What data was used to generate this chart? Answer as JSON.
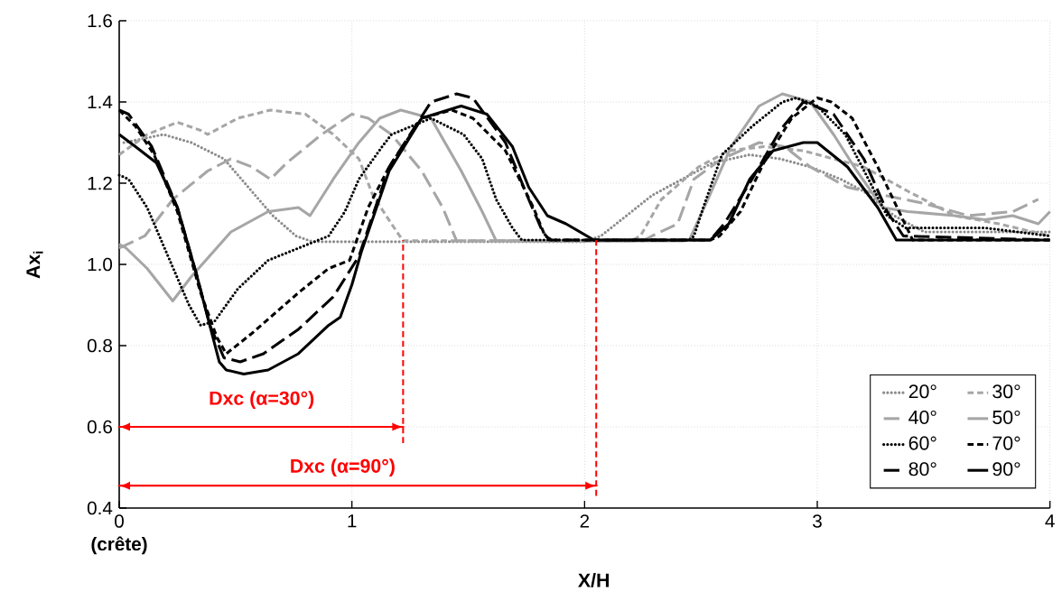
{
  "chart_data": {
    "type": "line",
    "xlabel": "X/H",
    "ylabel": "Ax$_{i}$",
    "xlim": [
      0,
      4
    ],
    "ylim": [
      0.4,
      1.6
    ],
    "xticks": [
      {
        "value": 0,
        "label": "0 **(crête)**"
      },
      1,
      2,
      3,
      4
    ],
    "yticks": [
      0.4,
      0.6,
      0.8,
      {
        "value": 1,
        "label": "1.0"
      },
      1.2,
      1.4,
      1.6
    ],
    "grid": true,
    "legend": "bottom right",
    "marker": "none",
    "series": [
      {
        "name": "20°",
        "color": "#8c8c8c",
        "line_style": "dotted",
        "x": [
          0.02,
          0.19,
          0.31,
          0.45,
          0.57,
          0.66,
          0.76,
          0.83,
          2.0,
          2.07,
          2.18,
          2.29,
          2.42,
          2.55,
          2.71,
          2.84,
          2.97,
          3.1,
          3.2,
          3.33,
          3.46,
          3.72,
          4.0
        ],
        "values": [
          1.3,
          1.32,
          1.3,
          1.26,
          1.18,
          1.12,
          1.07,
          1.056,
          1.056,
          1.07,
          1.12,
          1.17,
          1.21,
          1.25,
          1.27,
          1.26,
          1.24,
          1.21,
          1.18,
          1.12,
          1.08,
          1.08,
          1.08
        ]
      },
      {
        "name": "30°",
        "color": "#a6a6a6",
        "line_style": "dashed",
        "x": [
          0,
          0.12,
          0.25,
          0.35,
          0.38,
          0.51,
          0.65,
          0.8,
          0.92,
          1.03,
          1.09,
          1.17,
          1.22,
          2.2,
          2.24,
          2.33,
          2.49,
          2.62,
          2.77,
          2.94,
          3.07,
          3.2,
          3.39,
          3.59,
          3.78,
          4.0
        ],
        "values": [
          1.27,
          1.32,
          1.35,
          1.33,
          1.32,
          1.36,
          1.38,
          1.37,
          1.32,
          1.26,
          1.17,
          1.1,
          1.058,
          1.058,
          1.07,
          1.16,
          1.24,
          1.28,
          1.29,
          1.28,
          1.26,
          1.24,
          1.18,
          1.12,
          1.1,
          1.07
        ]
      },
      {
        "name": "40°",
        "color": "#a6a6a6",
        "line_style": "long dashed",
        "x": [
          0,
          0.11,
          0.23,
          0.38,
          0.48,
          0.57,
          0.65,
          0.72,
          0.87,
          1.0,
          1.07,
          1.17,
          1.3,
          1.39,
          1.45,
          2.25,
          2.29,
          2.4,
          2.47,
          2.59,
          2.75,
          2.86,
          2.97,
          3.13,
          3.29,
          3.46,
          3.65,
          3.84,
          3.95
        ],
        "values": [
          1.04,
          1.07,
          1.16,
          1.23,
          1.26,
          1.24,
          1.21,
          1.25,
          1.32,
          1.37,
          1.36,
          1.32,
          1.23,
          1.14,
          1.058,
          1.058,
          1.07,
          1.1,
          1.21,
          1.26,
          1.3,
          1.29,
          1.24,
          1.19,
          1.17,
          1.15,
          1.12,
          1.13,
          1.16
        ]
      },
      {
        "name": "50°",
        "color": "#a6a6a6",
        "line_style": "solid",
        "x": [
          0,
          0.03,
          0.12,
          0.23,
          0.31,
          0.48,
          0.64,
          0.77,
          0.82,
          0.92,
          1.03,
          1.12,
          1.21,
          1.34,
          1.47,
          1.56,
          1.62,
          2.42,
          2.45,
          2.53,
          2.63,
          2.75,
          2.85,
          2.97,
          3.07,
          3.17,
          3.28,
          3.39,
          3.59,
          3.72,
          3.84,
          3.95,
          4.0
        ],
        "values": [
          1.05,
          1.04,
          0.99,
          0.91,
          0.97,
          1.08,
          1.13,
          1.14,
          1.12,
          1.21,
          1.3,
          1.36,
          1.38,
          1.36,
          1.23,
          1.13,
          1.058,
          1.058,
          1.06,
          1.16,
          1.29,
          1.39,
          1.42,
          1.4,
          1.32,
          1.23,
          1.14,
          1.13,
          1.12,
          1.11,
          1.12,
          1.1,
          1.13
        ]
      },
      {
        "name": "60°",
        "color": "#000000",
        "line_style": "dotted",
        "x": [
          0,
          0.04,
          0.12,
          0.21,
          0.3,
          0.35,
          0.41,
          0.51,
          0.64,
          0.77,
          0.9,
          0.97,
          1.03,
          1.13,
          1.17,
          1.34,
          1.48,
          1.56,
          1.62,
          1.69,
          1.73,
          2.45,
          2.47,
          2.51,
          2.59,
          2.72,
          2.85,
          2.91,
          3.0,
          3.12,
          3.22,
          3.3,
          3.38,
          3.72,
          4.0
        ],
        "values": [
          1.22,
          1.21,
          1.14,
          1.02,
          0.9,
          0.85,
          0.86,
          0.94,
          1.01,
          1.04,
          1.07,
          1.13,
          1.21,
          1.29,
          1.32,
          1.36,
          1.32,
          1.26,
          1.16,
          1.09,
          1.06,
          1.06,
          1.07,
          1.14,
          1.27,
          1.34,
          1.4,
          1.41,
          1.39,
          1.32,
          1.21,
          1.12,
          1.09,
          1.09,
          1.07
        ]
      },
      {
        "name": "70°",
        "color": "#000000",
        "line_style": "dashed",
        "x": [
          0,
          0.07,
          0.15,
          0.25,
          0.35,
          0.42,
          0.46,
          0.57,
          0.77,
          0.9,
          0.99,
          1.07,
          1.16,
          1.3,
          1.43,
          1.52,
          1.66,
          1.78,
          1.83,
          1.86,
          2.54,
          2.58,
          2.67,
          2.77,
          2.89,
          3.0,
          3.06,
          3.15,
          3.26,
          3.36,
          3.41,
          4.0
        ],
        "values": [
          1.38,
          1.34,
          1.27,
          1.13,
          0.93,
          0.82,
          0.78,
          0.83,
          0.93,
          0.99,
          1.01,
          1.14,
          1.24,
          1.36,
          1.38,
          1.36,
          1.28,
          1.14,
          1.07,
          1.06,
          1.06,
          1.07,
          1.13,
          1.25,
          1.36,
          1.41,
          1.4,
          1.36,
          1.24,
          1.12,
          1.06,
          1.06
        ]
      },
      {
        "name": "80°",
        "color": "#000000",
        "line_style": "long dashed",
        "x": [
          0,
          0.04,
          0.14,
          0.25,
          0.33,
          0.39,
          0.45,
          0.52,
          0.62,
          0.77,
          0.92,
          1.03,
          1.16,
          1.34,
          1.45,
          1.52,
          1.66,
          1.76,
          1.82,
          1.85,
          2.54,
          2.6,
          2.72,
          2.84,
          2.94,
          2.99,
          3.07,
          3.2,
          3.3,
          3.37,
          4.0
        ],
        "values": [
          1.38,
          1.37,
          1.29,
          1.14,
          0.98,
          0.85,
          0.77,
          0.76,
          0.78,
          0.84,
          0.92,
          1.02,
          1.24,
          1.4,
          1.42,
          1.41,
          1.3,
          1.16,
          1.08,
          1.06,
          1.06,
          1.1,
          1.21,
          1.33,
          1.4,
          1.39,
          1.37,
          1.26,
          1.13,
          1.07,
          1.06
        ]
      },
      {
        "name": "90°",
        "color": "#000000",
        "line_style": "solid",
        "x": [
          0,
          0.07,
          0.16,
          0.25,
          0.33,
          0.38,
          0.43,
          0.46,
          0.535,
          0.64,
          0.77,
          0.9,
          0.95,
          1.0,
          1.04,
          1.16,
          1.3,
          1.47,
          1.58,
          1.69,
          1.76,
          1.84,
          1.92,
          2.04,
          2.54,
          2.62,
          2.71,
          2.81,
          2.94,
          3.0,
          3.13,
          3.26,
          3.34,
          4.0
        ],
        "values": [
          1.32,
          1.29,
          1.25,
          1.14,
          0.98,
          0.87,
          0.76,
          0.74,
          0.73,
          0.74,
          0.78,
          0.85,
          0.87,
          0.95,
          1.03,
          1.23,
          1.36,
          1.39,
          1.37,
          1.29,
          1.19,
          1.12,
          1.1,
          1.06,
          1.06,
          1.1,
          1.21,
          1.28,
          1.3,
          1.3,
          1.24,
          1.14,
          1.06,
          1.06
        ]
      },
      {
        "color": "#ff0000",
        "line_style": "dashed",
        "x": [
          1.22,
          1.22
        ],
        "values": [
          0.56,
          1.06
        ]
      },
      {
        "color": "#ff0000",
        "line_style": "dashed",
        "x": [
          2.05,
          2.05
        ],
        "values": [
          0.43,
          1.06
        ]
      },
      {
        "color": "#ff0000",
        "line_style": "solid",
        "x": [
          0,
          1.22
        ],
        "values": [
          0.6,
          0.6
        ]
      },
      {
        "color": "#ff0000",
        "line_style": "solid",
        "x": [
          0,
          2.05
        ],
        "values": [
          0.455,
          0.455
        ]
      }
    ],
    "annotations": [
      "Dxc (α=30°)",
      "Dxc (α=90°)"
    ]
  }
}
